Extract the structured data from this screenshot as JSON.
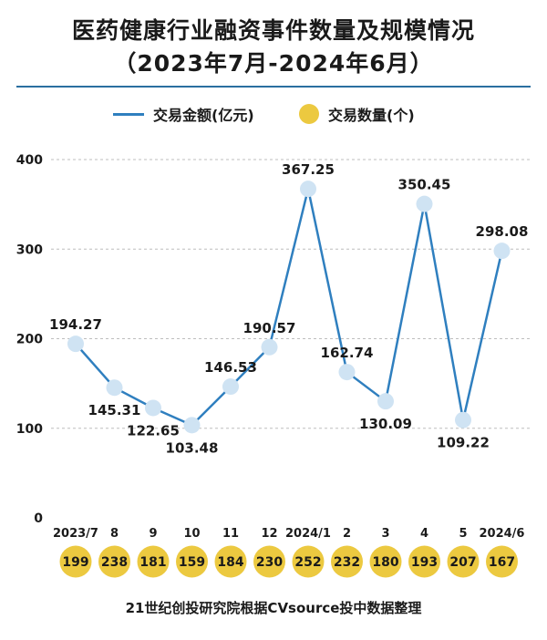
{
  "title_line1": "医药健康行业融资事件数量及规模情况",
  "title_line2": "（2023年7月-2024年6月）",
  "legend": {
    "amount_label": "交易金额(亿元)",
    "count_label": "交易数量(个)"
  },
  "footer": "21世纪创投研究院根据CVsource投中数据整理",
  "colors": {
    "line": "#2f7fbf",
    "marker": "#cfe3f3",
    "count_bubble": "#ecc940",
    "grid": "#bdbdbd",
    "rule": "#2a6fa0"
  },
  "chart_data": {
    "type": "line",
    "categories": [
      "2023/7",
      "8",
      "9",
      "10",
      "11",
      "12",
      "2024/1",
      "2",
      "3",
      "4",
      "5",
      "2024/6"
    ],
    "series": [
      {
        "name": "交易金额(亿元)",
        "values": [
          194.27,
          145.31,
          122.65,
          103.48,
          146.53,
          190.57,
          367.25,
          162.74,
          130.09,
          350.45,
          109.22,
          298.08
        ],
        "labels": [
          "194.27",
          "145.31",
          "122.65",
          "103.48",
          "146.53",
          "190.57",
          "367.25",
          "162.74",
          "130.09",
          "350.45",
          "109.22",
          "298.08"
        ]
      },
      {
        "name": "交易数量(个)",
        "values": [
          199,
          238,
          181,
          159,
          184,
          230,
          252,
          232,
          180,
          193,
          207,
          167
        ]
      }
    ],
    "yticks": [
      0,
      100,
      200,
      300,
      400
    ],
    "ylim": [
      0,
      400
    ],
    "grid": true,
    "grid_style": "dashed horizontal",
    "legend_position": "top"
  }
}
